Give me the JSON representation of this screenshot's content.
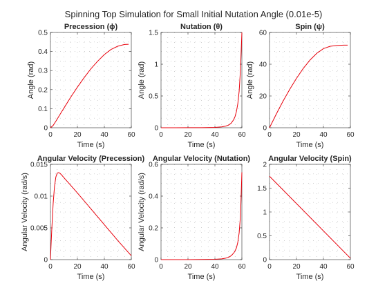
{
  "figure": {
    "title": "Spinning Top Simulation for Small Initial Nutation Angle (0.01e-5)",
    "line_color": "#e8000b",
    "axis_color": "#262626",
    "grid": "dotted"
  },
  "chart_data": [
    {
      "type": "line",
      "title": "Precession (ϕ)",
      "xlabel": "Time (s)",
      "ylabel": "Angle (rad)",
      "xlim": [
        0,
        60
      ],
      "ylim": [
        0,
        0.5
      ],
      "xticks": [
        0,
        20,
        40,
        60
      ],
      "yticks": [
        0,
        0.1,
        0.2,
        0.3,
        0.4,
        0.5
      ],
      "ytick_labels": [
        "0",
        "0.1",
        "0.2",
        "0.3",
        "0.4",
        "0.5"
      ],
      "series": [
        {
          "x": [
            0,
            2,
            4,
            6,
            8,
            10,
            15,
            20,
            25,
            30,
            35,
            40,
            45,
            50,
            55,
            58
          ],
          "y": [
            0,
            0.012,
            0.034,
            0.057,
            0.08,
            0.103,
            0.16,
            0.213,
            0.263,
            0.309,
            0.349,
            0.384,
            0.411,
            0.428,
            0.437,
            0.438
          ]
        }
      ]
    },
    {
      "type": "line",
      "title": "Nutation (θ)",
      "xlabel": "Time (s)",
      "ylabel": "Angle (rad)",
      "xlim": [
        0,
        60
      ],
      "ylim": [
        0,
        1.5
      ],
      "xticks": [
        0,
        20,
        40,
        60
      ],
      "yticks": [
        0,
        0.5,
        1,
        1.5
      ],
      "ytick_labels": [
        "0",
        "0.5",
        "1",
        "1.5"
      ],
      "series": [
        {
          "x": [
            0,
            10,
            20,
            30,
            40,
            45,
            48,
            50,
            52,
            54,
            55,
            56,
            57,
            58,
            59,
            60
          ],
          "y": [
            0,
            0,
            0.001,
            0.002,
            0.006,
            0.014,
            0.026,
            0.04,
            0.07,
            0.13,
            0.18,
            0.26,
            0.38,
            0.58,
            0.93,
            1.5
          ]
        }
      ]
    },
    {
      "type": "line",
      "title": "Spin (ψ)",
      "xlabel": "Time (s)",
      "ylabel": "Angle (rad)",
      "xlim": [
        0,
        60
      ],
      "ylim": [
        0,
        60
      ],
      "xticks": [
        0,
        20,
        40,
        60
      ],
      "yticks": [
        0,
        20,
        40,
        60
      ],
      "ytick_labels": [
        "0",
        "20",
        "40",
        "60"
      ],
      "series": [
        {
          "x": [
            0,
            5,
            10,
            15,
            20,
            25,
            30,
            35,
            40,
            45,
            50,
            55,
            58
          ],
          "y": [
            0,
            8.6,
            16.7,
            24.2,
            31.1,
            37.3,
            42.6,
            46.8,
            49.8,
            51.3,
            51.8,
            52,
            52
          ]
        }
      ]
    },
    {
      "type": "line",
      "title": "Angular Velocity (Precession)",
      "xlabel": "Time (s)",
      "ylabel": "Angular Velocity (rad/s)",
      "xlim": [
        0,
        60
      ],
      "ylim": [
        0,
        0.015
      ],
      "xticks": [
        0,
        20,
        40,
        60
      ],
      "yticks": [
        0,
        0.005,
        0.01,
        0.015
      ],
      "ytick_labels": [
        "0",
        "0.005",
        "0.01",
        "0.015"
      ],
      "series": [
        {
          "x": [
            0,
            0.5,
            1,
            2,
            3,
            4,
            5,
            6,
            7,
            8,
            10,
            20,
            30,
            40,
            50,
            60
          ],
          "y": [
            0,
            0.0025,
            0.0048,
            0.0088,
            0.0115,
            0.013,
            0.0136,
            0.0137,
            0.0136,
            0.0134,
            0.0129,
            0.0105,
            0.008,
            0.0055,
            0.003,
            0.0006
          ]
        }
      ]
    },
    {
      "type": "line",
      "title": "Angular Velocity (Nutation)",
      "xlabel": "Time (s)",
      "ylabel": "Angular Velocity (rad/s)",
      "xlim": [
        0,
        60
      ],
      "ylim": [
        0,
        0.6
      ],
      "xticks": [
        0,
        20,
        40,
        60
      ],
      "yticks": [
        0,
        0.2,
        0.4,
        0.6
      ],
      "ytick_labels": [
        "0",
        "0.2",
        "0.4",
        "0.6"
      ],
      "series": [
        {
          "x": [
            0,
            10,
            20,
            30,
            40,
            45,
            48,
            50,
            52,
            54,
            55,
            56,
            57,
            58,
            59,
            60
          ],
          "y": [
            0,
            0,
            0,
            0.001,
            0.002,
            0.005,
            0.009,
            0.014,
            0.024,
            0.042,
            0.056,
            0.075,
            0.11,
            0.17,
            0.28,
            0.55
          ]
        }
      ]
    },
    {
      "type": "line",
      "title": "Angular Velocity (Spin)",
      "xlabel": "Time (s)",
      "ylabel": "",
      "xlim": [
        0,
        60
      ],
      "ylim": [
        0,
        2
      ],
      "xticks": [
        0,
        20,
        40,
        60
      ],
      "yticks": [
        0,
        0.5,
        1,
        1.5,
        2
      ],
      "ytick_labels": [
        "0",
        "0.5",
        "1",
        "1.5",
        "2"
      ],
      "series": [
        {
          "x": [
            0,
            60
          ],
          "y": [
            1.75,
            0.03
          ]
        }
      ]
    }
  ]
}
